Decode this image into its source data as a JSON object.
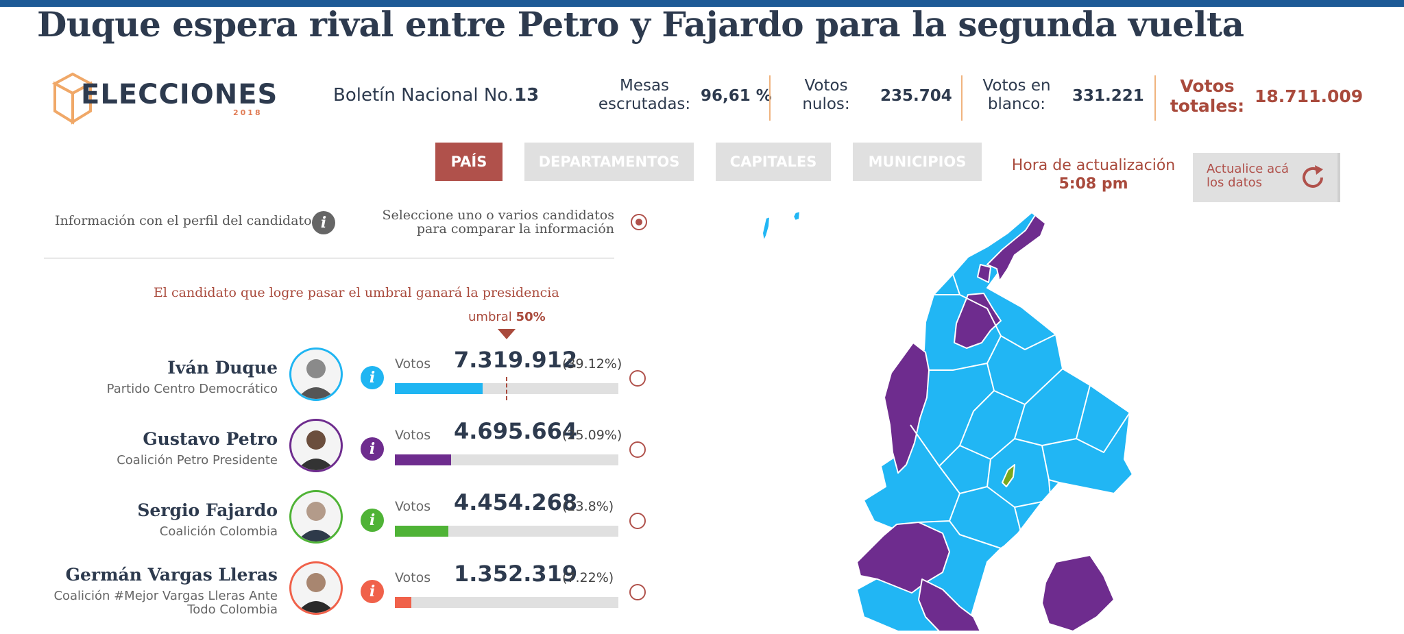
{
  "headline": "Duque espera rival entre Petro y Fajardo para la segunda vuelta",
  "logo": {
    "text": "ELECCIONES",
    "year": "2018"
  },
  "bulletin": {
    "label": "Boletín Nacional No.",
    "number": "13"
  },
  "stats": {
    "mesas": {
      "label_line1": "Mesas",
      "label_line2": "escrutadas:",
      "value": "96,61 %"
    },
    "nulos": {
      "label_line1": "Votos",
      "label_line2": "nulos:",
      "value": "235.704"
    },
    "blanco": {
      "label_line1": "Votos en",
      "label_line2": "blanco:",
      "value": "331.221"
    },
    "totales": {
      "label_line1": "Votos",
      "label_line2": "totales:",
      "value": "18.711.009"
    }
  },
  "tabs": [
    {
      "label": "PAÍS",
      "active": true
    },
    {
      "label": "DEPARTAMENTOS",
      "active": false
    },
    {
      "label": "CAPITALES",
      "active": false
    },
    {
      "label": "MUNICIPIOS",
      "active": false
    }
  ],
  "update": {
    "label": "Hora de actualización",
    "time": "5:08 pm",
    "refresh_line1": "Actualice acá",
    "refresh_line2": "los datos"
  },
  "info_profile": "Información con el perfil del candidato",
  "select_compare_line1": "Seleccione uno o varios candidatos",
  "select_compare_line2": "para comparar la información",
  "threshold_text": "El candidato que logre pasar el umbral ganará la presidencia",
  "umbral": {
    "label": "umbral",
    "value": "50%",
    "fraction": 0.5
  },
  "candidates": [
    {
      "name": "Iván Duque",
      "party_line1": "Partido Centro Democrático",
      "party_line2": "",
      "votes_label": "Votos",
      "votes": "7.319.912",
      "pct": "(39.12%)",
      "share": 0.3912,
      "color": "#1fb5f2"
    },
    {
      "name": "Gustavo Petro",
      "party_line1": "Coalición Petro Presidente",
      "party_line2": "",
      "votes_label": "Votos",
      "votes": "4.695.664",
      "pct": "(25.09%)",
      "share": 0.2509,
      "color": "#6e2c8e"
    },
    {
      "name": "Sergio Fajardo",
      "party_line1": "Coalición Colombia",
      "party_line2": "",
      "votes_label": "Votos",
      "votes": "4.454.268",
      "pct": "(23.8%)",
      "share": 0.238,
      "color": "#4fb336"
    },
    {
      "name": "Germán Vargas Lleras",
      "party_line1": "Coalición #Mejor Vargas Lleras Ante",
      "party_line2": "Todo Colombia",
      "votes_label": "Votos",
      "votes": "1.352.319",
      "pct": "(7.22%)",
      "share": 0.0722,
      "color": "#f0614a"
    }
  ],
  "map_colors": {
    "duque": "#21b6f4",
    "petro": "#6e2c8e",
    "fajardo": "#7aa81e"
  }
}
